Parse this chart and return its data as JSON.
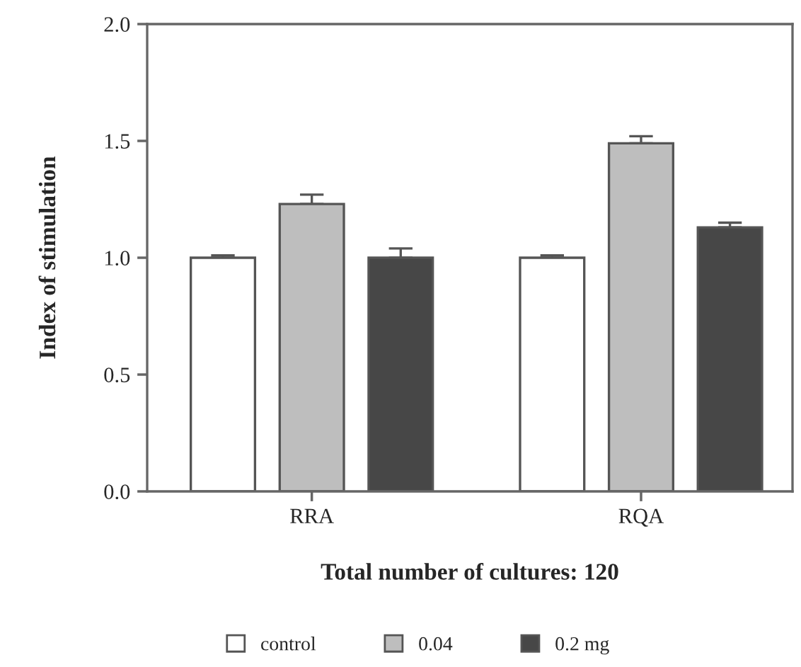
{
  "chart_data": {
    "type": "bar",
    "xlabel": "Total number of cultures: 120",
    "ylabel": "Index of stimulation",
    "categories": [
      "RRA",
      "RQA"
    ],
    "series": [
      {
        "name": "control",
        "color": "#ffffff",
        "values": [
          1.0,
          1.0
        ],
        "errors": [
          [
            1.0,
            1.01
          ],
          [
            1.0,
            1.01
          ]
        ]
      },
      {
        "name": "0.04",
        "color": "#bebebe",
        "values": [
          1.23,
          1.49
        ],
        "errors": [
          [
            1.23,
            1.27
          ],
          [
            1.49,
            1.52
          ]
        ]
      },
      {
        "name": "0.2 mg",
        "color": "#474747",
        "values": [
          1.0,
          1.13
        ],
        "errors": [
          [
            1.0,
            1.04
          ],
          [
            1.13,
            1.15
          ]
        ]
      }
    ],
    "ylim": [
      0,
      2.0
    ],
    "yticks": [
      {
        "value": 0,
        "label": "0.0"
      },
      0.5,
      {
        "value": 1,
        "label": "1.0"
      },
      1.5,
      {
        "value": 2,
        "label": "2.0"
      }
    ],
    "grid": false,
    "legend": "bottom"
  }
}
